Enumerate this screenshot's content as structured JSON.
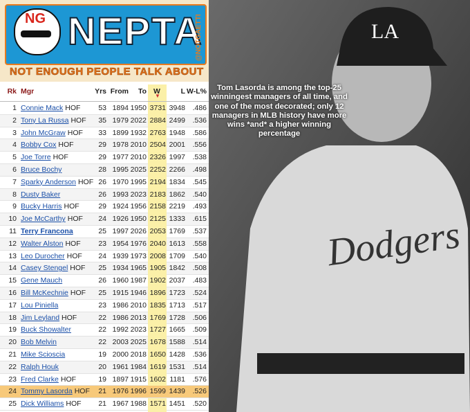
{
  "logo": {
    "badge": "NG",
    "title": "NEPTA",
    "subtitle": "NOT ENOUGH PEOPLE TALK ABOUT",
    "handle": "@NOTGAETTI"
  },
  "caption": "Tom Lasorda is among the top-25 winningest managers of all time, and one of the most decorated; only 12 managers in MLB history have more wins *and* a higher winning percentage",
  "table": {
    "headers": [
      "Rk",
      "Mgr",
      "Yrs",
      "From",
      "To",
      "W",
      "L",
      "W-L%"
    ],
    "rows": [
      {
        "rk": 1,
        "mgr": "Connie Mack",
        "hof": "HOF",
        "yrs": 53,
        "from": 1894,
        "to": 1950,
        "w": 3731,
        "l": 3948,
        "pct": ".486"
      },
      {
        "rk": 2,
        "mgr": "Tony La Russa",
        "hof": "HOF",
        "yrs": 35,
        "from": 1979,
        "to": 2022,
        "w": 2884,
        "l": 2499,
        "pct": ".536"
      },
      {
        "rk": 3,
        "mgr": "John McGraw",
        "hof": "HOF",
        "yrs": 33,
        "from": 1899,
        "to": 1932,
        "w": 2763,
        "l": 1948,
        "pct": ".586"
      },
      {
        "rk": 4,
        "mgr": "Bobby Cox",
        "hof": "HOF",
        "yrs": 29,
        "from": 1978,
        "to": 2010,
        "w": 2504,
        "l": 2001,
        "pct": ".556"
      },
      {
        "rk": 5,
        "mgr": "Joe Torre",
        "hof": "HOF",
        "yrs": 29,
        "from": 1977,
        "to": 2010,
        "w": 2326,
        "l": 1997,
        "pct": ".538"
      },
      {
        "rk": 6,
        "mgr": "Bruce Bochy",
        "yrs": 28,
        "from": 1995,
        "to": 2025,
        "w": 2252,
        "l": 2266,
        "pct": ".498"
      },
      {
        "rk": 7,
        "mgr": "Sparky Anderson",
        "hof": "HOF",
        "yrs": 26,
        "from": 1970,
        "to": 1995,
        "w": 2194,
        "l": 1834,
        "pct": ".545"
      },
      {
        "rk": 8,
        "mgr": "Dusty Baker",
        "yrs": 26,
        "from": 1993,
        "to": 2023,
        "w": 2183,
        "l": 1862,
        "pct": ".540"
      },
      {
        "rk": 9,
        "mgr": "Bucky Harris",
        "hof": "HOF",
        "yrs": 29,
        "from": 1924,
        "to": 1956,
        "w": 2158,
        "l": 2219,
        "pct": ".493"
      },
      {
        "rk": 10,
        "mgr": "Joe McCarthy",
        "hof": "HOF",
        "yrs": 24,
        "from": 1926,
        "to": 1950,
        "w": 2125,
        "l": 1333,
        "pct": ".615"
      },
      {
        "rk": 11,
        "mgr": "Terry Francona",
        "bold": true,
        "yrs": 25,
        "from": 1997,
        "to": 2026,
        "w": 2053,
        "l": 1769,
        "pct": ".537"
      },
      {
        "rk": 12,
        "mgr": "Walter Alston",
        "hof": "HOF",
        "yrs": 23,
        "from": 1954,
        "to": 1976,
        "w": 2040,
        "l": 1613,
        "pct": ".558"
      },
      {
        "rk": 13,
        "mgr": "Leo Durocher",
        "hof": "HOF",
        "yrs": 24,
        "from": 1939,
        "to": 1973,
        "w": 2008,
        "l": 1709,
        "pct": ".540"
      },
      {
        "rk": 14,
        "mgr": "Casey Stengel",
        "hof": "HOF",
        "yrs": 25,
        "from": 1934,
        "to": 1965,
        "w": 1905,
        "l": 1842,
        "pct": ".508"
      },
      {
        "rk": 15,
        "mgr": "Gene Mauch",
        "yrs": 26,
        "from": 1960,
        "to": 1987,
        "w": 1902,
        "l": 2037,
        "pct": ".483"
      },
      {
        "rk": 16,
        "mgr": "Bill McKechnie",
        "hof": "HOF",
        "yrs": 25,
        "from": 1915,
        "to": 1946,
        "w": 1896,
        "l": 1723,
        "pct": ".524"
      },
      {
        "rk": 17,
        "mgr": "Lou Piniella",
        "yrs": 23,
        "from": 1986,
        "to": 2010,
        "w": 1835,
        "l": 1713,
        "pct": ".517"
      },
      {
        "rk": 18,
        "mgr": "Jim Leyland",
        "hof": "HOF",
        "yrs": 22,
        "from": 1986,
        "to": 2013,
        "w": 1769,
        "l": 1728,
        "pct": ".506"
      },
      {
        "rk": 19,
        "mgr": "Buck Showalter",
        "yrs": 22,
        "from": 1992,
        "to": 2023,
        "w": 1727,
        "l": 1665,
        "pct": ".509"
      },
      {
        "rk": 20,
        "mgr": "Bob Melvin",
        "yrs": 22,
        "from": 2003,
        "to": 2025,
        "w": 1678,
        "l": 1588,
        "pct": ".514"
      },
      {
        "rk": 21,
        "mgr": "Mike Scioscia",
        "yrs": 19,
        "from": 2000,
        "to": 2018,
        "w": 1650,
        "l": 1428,
        "pct": ".536"
      },
      {
        "rk": 22,
        "mgr": "Ralph Houk",
        "yrs": 20,
        "from": 1961,
        "to": 1984,
        "w": 1619,
        "l": 1531,
        "pct": ".514"
      },
      {
        "rk": 23,
        "mgr": "Fred Clarke",
        "hof": "HOF",
        "yrs": 19,
        "from": 1897,
        "to": 1915,
        "w": 1602,
        "l": 1181,
        "pct": ".576"
      },
      {
        "rk": 24,
        "mgr": "Tommy Lasorda",
        "hof": "HOF",
        "highlighted": true,
        "yrs": 21,
        "from": 1976,
        "to": 1996,
        "w": 1599,
        "l": 1439,
        "pct": ".526"
      },
      {
        "rk": 25,
        "mgr": "Dick Williams",
        "hof": "HOF",
        "yrs": 21,
        "from": 1967,
        "to": 1988,
        "w": 1571,
        "l": 1451,
        "pct": ".520"
      }
    ]
  }
}
